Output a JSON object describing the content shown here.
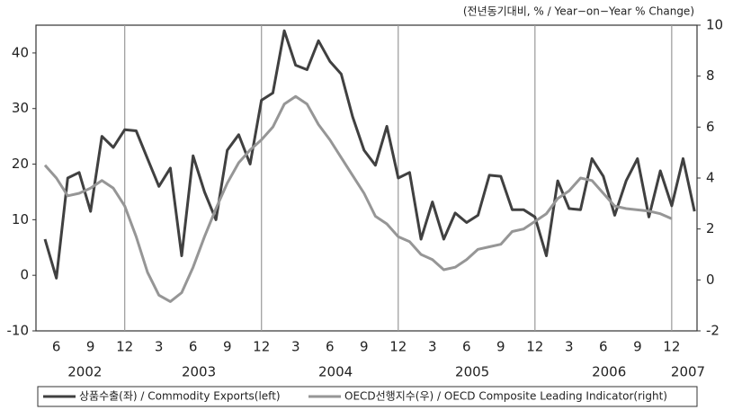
{
  "chart_data": {
    "type": "line",
    "title": "(전년동기대비, % / Year−on−Year % Change)",
    "x": [
      "2002-05",
      "2002-06",
      "2002-07",
      "2002-08",
      "2002-09",
      "2002-10",
      "2002-11",
      "2002-12",
      "2003-01",
      "2003-02",
      "2003-03",
      "2003-04",
      "2003-05",
      "2003-06",
      "2003-07",
      "2003-08",
      "2003-09",
      "2003-10",
      "2003-11",
      "2003-12",
      "2004-01",
      "2004-02",
      "2004-03",
      "2004-04",
      "2004-05",
      "2004-06",
      "2004-07",
      "2004-08",
      "2004-09",
      "2004-10",
      "2004-11",
      "2004-12",
      "2005-01",
      "2005-02",
      "2005-03",
      "2005-04",
      "2005-05",
      "2005-06",
      "2005-07",
      "2005-08",
      "2005-09",
      "2005-10",
      "2005-11",
      "2005-12",
      "2006-01",
      "2006-02",
      "2006-03",
      "2006-04",
      "2006-05",
      "2006-06",
      "2006-07",
      "2006-08",
      "2006-09",
      "2006-10",
      "2006-11",
      "2006-12",
      "2007-01",
      "2007-02"
    ],
    "xticks": [
      {
        "value": "2002-06",
        "label": "6"
      },
      {
        "value": "2002-09",
        "label": "9"
      },
      {
        "value": "2002-12",
        "label": "12"
      },
      {
        "value": "2003-03",
        "label": "3"
      },
      {
        "value": "2003-06",
        "label": "6"
      },
      {
        "value": "2003-09",
        "label": "9"
      },
      {
        "value": "2003-12",
        "label": "12"
      },
      {
        "value": "2004-03",
        "label": "3"
      },
      {
        "value": "2004-06",
        "label": "6"
      },
      {
        "value": "2004-09",
        "label": "9"
      },
      {
        "value": "2004-12",
        "label": "12"
      },
      {
        "value": "2005-03",
        "label": "3"
      },
      {
        "value": "2005-06",
        "label": "6"
      },
      {
        "value": "2005-09",
        "label": "9"
      },
      {
        "value": "2005-12",
        "label": "12"
      },
      {
        "value": "2006-03",
        "label": "3"
      },
      {
        "value": "2006-06",
        "label": "6"
      },
      {
        "value": "2006-09",
        "label": "9"
      },
      {
        "value": "2006-12",
        "label": "12"
      }
    ],
    "years": [
      "2002",
      "2003",
      "2004",
      "2005",
      "2006",
      "2007"
    ],
    "xgrid": [
      "2002-12",
      "2003-12",
      "2004-12",
      "2005-12",
      "2006-12"
    ],
    "series": [
      {
        "name": "상품수출(좌) / Commodity Exports(left)",
        "color": "#404040",
        "axis": "y",
        "values": [
          6.5,
          -0.5,
          17.5,
          18.5,
          11.5,
          25,
          23,
          26.2,
          26,
          21,
          16,
          19.3,
          3.5,
          21.5,
          15,
          10,
          22.5,
          25.3,
          20,
          31.5,
          32.8,
          44,
          37.8,
          37,
          42.2,
          38.5,
          36.2,
          28.5,
          22.5,
          19.8,
          26.8,
          17.5,
          18.5,
          6.5,
          13.2,
          6.5,
          11.2,
          9.5,
          10.8,
          18,
          17.8,
          11.8,
          11.8,
          10.5,
          3.5,
          17,
          12,
          11.8,
          21,
          17.8,
          10.8,
          17,
          21,
          10.5,
          18.8,
          12.5,
          21,
          11.5
        ]
      },
      {
        "name": "OECD선행지수(우) / OECD Composite Leading Indicator(right)",
        "color": "#969696",
        "axis": "y2",
        "values": [
          4.5,
          4.0,
          3.3,
          3.4,
          3.6,
          3.9,
          3.6,
          2.9,
          1.7,
          0.3,
          -0.6,
          -0.85,
          -0.5,
          0.5,
          1.7,
          2.8,
          3.8,
          4.6,
          5.1,
          5.5,
          6.0,
          6.9,
          7.2,
          6.9,
          6.1,
          5.5,
          4.8,
          4.1,
          3.4,
          2.5,
          2.2,
          1.7,
          1.5,
          1.0,
          0.8,
          0.4,
          0.5,
          0.8,
          1.2,
          1.3,
          1.4,
          1.9,
          2.0,
          2.3,
          2.6,
          3.2,
          3.5,
          4.0,
          3.9,
          3.4,
          2.9,
          2.8,
          2.75,
          2.7,
          2.6,
          2.4,
          null,
          null
        ]
      }
    ],
    "ylim": [
      -10,
      45
    ],
    "yticks": [
      -10,
      0,
      10,
      20,
      30,
      40
    ],
    "y2lim": [
      -2,
      10
    ],
    "y2ticks": [
      -2,
      0,
      2,
      4,
      6,
      8,
      10
    ]
  }
}
